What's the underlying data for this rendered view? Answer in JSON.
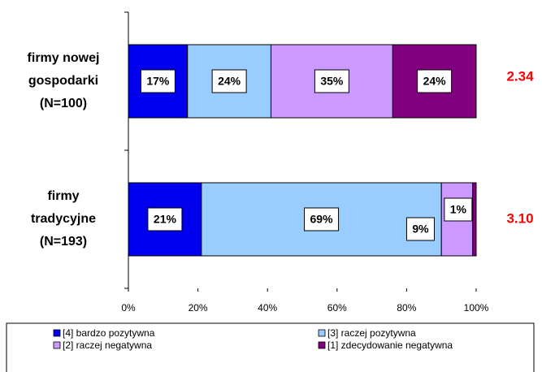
{
  "chart_data": {
    "type": "stacked-barh",
    "categories": [
      [
        "firmy nowej",
        "gospodarki",
        "(N=100)"
      ],
      [
        "firmy",
        "tradycyjne",
        "(N=193)"
      ]
    ],
    "series": [
      {
        "name": "[4] bardzo pozytywna",
        "color": "#0000ee",
        "values": [
          17,
          21
        ],
        "value_labels": [
          "17%",
          "21%"
        ]
      },
      {
        "name": "[3] raczej pozytywna",
        "color": "#99ccff",
        "values": [
          24,
          69
        ],
        "value_labels": [
          "24%",
          "69%"
        ]
      },
      {
        "name": "[2] raczej negatywna",
        "color": "#cc99ff",
        "values": [
          35,
          9
        ],
        "value_labels": [
          "35%",
          "9%"
        ]
      },
      {
        "name": "[1] zdecydowanie negatywna",
        "color": "#800080",
        "values": [
          24,
          1
        ],
        "value_labels": [
          "24%",
          "1%"
        ]
      }
    ],
    "annotations": [
      "2.34",
      "3.10"
    ],
    "annotation_color": "#ff0000",
    "xlim": [
      0,
      100
    ],
    "xticks": [
      {
        "value": 0,
        "label": "0%"
      },
      {
        "value": 20,
        "label": "20%"
      },
      {
        "value": 40,
        "label": "40%"
      },
      {
        "value": 60,
        "label": "60%"
      },
      {
        "value": 80,
        "label": "80%"
      },
      {
        "value": 100,
        "label": "100%"
      }
    ]
  }
}
